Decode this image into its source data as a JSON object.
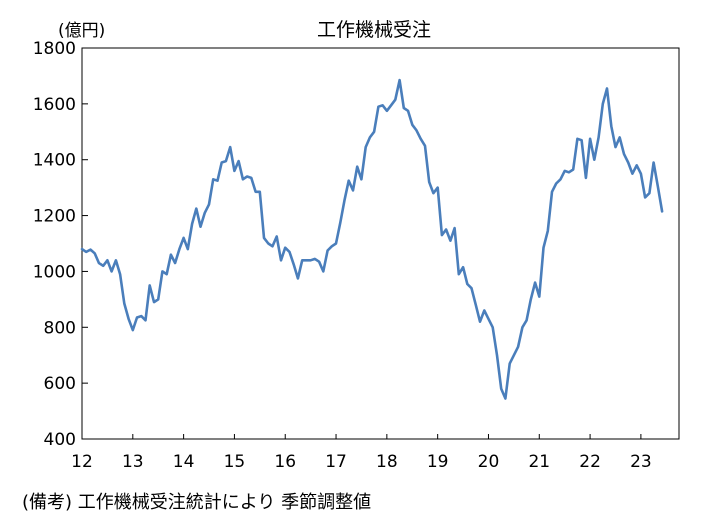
{
  "chart_data": {
    "type": "line",
    "title": "工作機械受注",
    "ylabel": "(億円)",
    "ylim": [
      400,
      1800
    ],
    "yticks": [
      400,
      600,
      800,
      1000,
      1200,
      1400,
      1600,
      1800
    ],
    "xlim": [
      2012,
      2023.75
    ],
    "xticks": [
      {
        "year": 2012,
        "label": "12"
      },
      {
        "year": 2013,
        "label": "13"
      },
      {
        "year": 2014,
        "label": "14"
      },
      {
        "year": 2015,
        "label": "15"
      },
      {
        "year": 2016,
        "label": "16"
      },
      {
        "year": 2017,
        "label": "17"
      },
      {
        "year": 2018,
        "label": "18"
      },
      {
        "year": 2019,
        "label": "19"
      },
      {
        "year": 2020,
        "label": "20"
      },
      {
        "year": 2021,
        "label": "21"
      },
      {
        "year": 2022,
        "label": "22"
      },
      {
        "year": 2023,
        "label": "23"
      }
    ],
    "grid": false,
    "line_color": "#4a7ebb",
    "series": [
      {
        "x": [
          2012.0,
          2012.083,
          2012.167,
          2012.25,
          2012.333,
          2012.417,
          2012.5,
          2012.583,
          2012.667,
          2012.75,
          2012.833,
          2012.917,
          2013.0,
          2013.083,
          2013.167,
          2013.25,
          2013.333,
          2013.417,
          2013.5,
          2013.583,
          2013.667,
          2013.75,
          2013.833,
          2013.917,
          2014.0,
          2014.083,
          2014.167,
          2014.25,
          2014.333,
          2014.417,
          2014.5,
          2014.583,
          2014.667,
          2014.75,
          2014.833,
          2014.917,
          2015.0,
          2015.083,
          2015.167,
          2015.25,
          2015.333,
          2015.417,
          2015.5,
          2015.583,
          2015.667,
          2015.75,
          2015.833,
          2015.917,
          2016.0,
          2016.083,
          2016.167,
          2016.25,
          2016.333,
          2016.417,
          2016.5,
          2016.583,
          2016.667,
          2016.75,
          2016.833,
          2016.917,
          2017.0,
          2017.083,
          2017.167,
          2017.25,
          2017.333,
          2017.417,
          2017.5,
          2017.583,
          2017.667,
          2017.75,
          2017.833,
          2017.917,
          2018.0,
          2018.083,
          2018.167,
          2018.25,
          2018.333,
          2018.417,
          2018.5,
          2018.583,
          2018.667,
          2018.75,
          2018.833,
          2018.917,
          2019.0,
          2019.083,
          2019.167,
          2019.25,
          2019.333,
          2019.417,
          2019.5,
          2019.583,
          2019.667,
          2019.75,
          2019.833,
          2019.917,
          2020.0,
          2020.083,
          2020.167,
          2020.25,
          2020.333,
          2020.417,
          2020.5,
          2020.583,
          2020.667,
          2020.75,
          2020.833,
          2020.917,
          2021.0,
          2021.083,
          2021.167,
          2021.25,
          2021.333,
          2021.417,
          2021.5,
          2021.583,
          2021.667,
          2021.75,
          2021.833,
          2021.917,
          2022.0,
          2022.083,
          2022.167,
          2022.25,
          2022.333,
          2022.417,
          2022.5,
          2022.583,
          2022.667,
          2022.75,
          2022.833,
          2022.917,
          2023.0,
          2023.083,
          2023.167,
          2023.25,
          2023.333,
          2023.417
        ],
        "y": [
          1080,
          1070,
          1078,
          1065,
          1030,
          1020,
          1040,
          1000,
          1040,
          990,
          885,
          830,
          790,
          835,
          840,
          825,
          950,
          890,
          900,
          1000,
          990,
          1060,
          1030,
          1080,
          1120,
          1080,
          1170,
          1225,
          1160,
          1210,
          1240,
          1330,
          1325,
          1390,
          1395,
          1445,
          1360,
          1395,
          1330,
          1340,
          1335,
          1285,
          1285,
          1120,
          1100,
          1090,
          1125,
          1040,
          1085,
          1070,
          1025,
          975,
          1040,
          1040,
          1040,
          1045,
          1035,
          1000,
          1075,
          1090,
          1100,
          1175,
          1255,
          1325,
          1290,
          1375,
          1330,
          1445,
          1480,
          1500,
          1590,
          1595,
          1575,
          1595,
          1615,
          1685,
          1585,
          1575,
          1525,
          1505,
          1475,
          1450,
          1320,
          1280,
          1300,
          1130,
          1150,
          1110,
          1155,
          990,
          1015,
          955,
          940,
          880,
          820,
          860,
          830,
          800,
          700,
          580,
          545,
          670,
          700,
          730,
          800,
          825,
          900,
          960,
          910,
          1085,
          1145,
          1285,
          1315,
          1330,
          1360,
          1355,
          1365,
          1475,
          1470,
          1335,
          1475,
          1400,
          1480,
          1600,
          1655,
          1520,
          1445,
          1480,
          1420,
          1390,
          1350,
          1380,
          1350,
          1265,
          1280,
          1390,
          1305,
          1215
        ]
      }
    ]
  },
  "footnote": "(備考) 工作機械受注統計により 季節調整値"
}
